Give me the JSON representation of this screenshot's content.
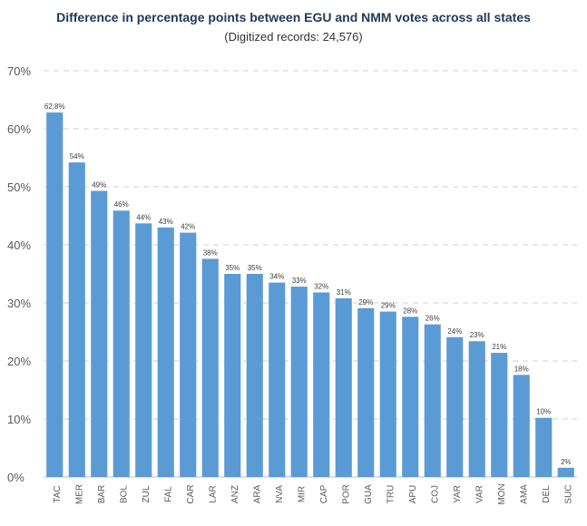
{
  "chart_data": {
    "type": "bar",
    "title": "Difference in percentage points between EGU and NMM votes across all states",
    "subtitle": "(Digitized records: 24,576)",
    "xlabel": "",
    "ylabel": "",
    "categories": [
      "TAC",
      "MER",
      "BAR",
      "BOL",
      "ZUL",
      "FAL",
      "CAR",
      "LAR",
      "ANZ",
      "ARA",
      "NVA",
      "MIR",
      "CAP",
      "POR",
      "GUA",
      "TRU",
      "APU",
      "COJ",
      "YAR",
      "VAR",
      "MON",
      "AMA",
      "DEL",
      "SUC"
    ],
    "values": [
      62.8,
      54.2,
      49.3,
      45.9,
      43.7,
      43.0,
      42.1,
      37.6,
      35.0,
      35.0,
      33.5,
      32.8,
      31.8,
      30.8,
      29.1,
      28.5,
      27.6,
      26.3,
      24.1,
      23.4,
      21.4,
      17.6,
      10.2,
      1.6
    ],
    "data_labels": [
      "62,8%",
      "54%",
      "49%",
      "46%",
      "44%",
      "43%",
      "42%",
      "38%",
      "35%",
      "35%",
      "34%",
      "33%",
      "32%",
      "31%",
      "29%",
      "29%",
      "28%",
      "26%",
      "24%",
      "23%",
      "21%",
      "18%",
      "10%",
      "2%"
    ],
    "y_ticks": [
      "0%",
      "10%",
      "20%",
      "30%",
      "40%",
      "50%",
      "60%",
      "70%"
    ],
    "ylim": [
      0,
      70
    ],
    "grid": true,
    "legend": "none",
    "bar_color": "#5b9bd5",
    "grid_color": "#d9d9d9"
  }
}
